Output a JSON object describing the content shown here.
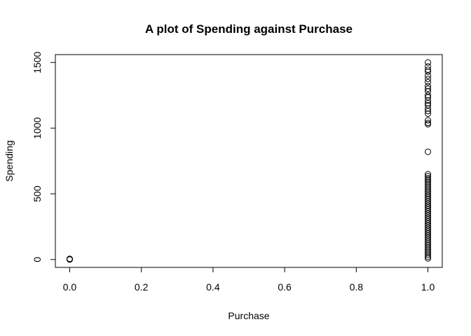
{
  "chart_data": {
    "type": "scatter",
    "title": "A plot of Spending against Purchase",
    "xlabel": "Purchase",
    "ylabel": "Spending",
    "xlim": [
      -0.04,
      1.04
    ],
    "ylim": [
      -60,
      1560
    ],
    "x_ticks": [
      0,
      0.2,
      0.4,
      0.6,
      0.8,
      1
    ],
    "x_tick_labels": [
      "0.0",
      "0.2",
      "0.4",
      "0.6",
      "0.8",
      "1.0"
    ],
    "y_ticks": [
      0,
      500,
      1000,
      1500
    ],
    "y_tick_labels": [
      "0",
      "500",
      "1000",
      "1500"
    ],
    "grid": false,
    "marker": "open-circle",
    "point_color": "#000000",
    "points": [
      {
        "x": 0,
        "y": 0
      },
      {
        "x": 0,
        "y": 2
      },
      {
        "x": 0,
        "y": 5
      },
      {
        "x": 0,
        "y": 1
      },
      {
        "x": 0,
        "y": 3
      },
      {
        "x": 1,
        "y": 1500
      },
      {
        "x": 1,
        "y": 1470
      },
      {
        "x": 1,
        "y": 1445
      },
      {
        "x": 1,
        "y": 1430
      },
      {
        "x": 1,
        "y": 1400
      },
      {
        "x": 1,
        "y": 1375
      },
      {
        "x": 1,
        "y": 1350
      },
      {
        "x": 1,
        "y": 1320
      },
      {
        "x": 1,
        "y": 1300
      },
      {
        "x": 1,
        "y": 1280
      },
      {
        "x": 1,
        "y": 1250
      },
      {
        "x": 1,
        "y": 1235
      },
      {
        "x": 1,
        "y": 1210
      },
      {
        "x": 1,
        "y": 1190
      },
      {
        "x": 1,
        "y": 1175
      },
      {
        "x": 1,
        "y": 1150
      },
      {
        "x": 1,
        "y": 1130
      },
      {
        "x": 1,
        "y": 1110
      },
      {
        "x": 1,
        "y": 1060
      },
      {
        "x": 1,
        "y": 1040
      },
      {
        "x": 1,
        "y": 1030
      },
      {
        "x": 1,
        "y": 820
      },
      {
        "x": 1,
        "y": 650
      },
      {
        "x": 1,
        "y": 635
      },
      {
        "x": 1,
        "y": 620
      },
      {
        "x": 1,
        "y": 605
      },
      {
        "x": 1,
        "y": 590
      },
      {
        "x": 1,
        "y": 575
      },
      {
        "x": 1,
        "y": 560
      },
      {
        "x": 1,
        "y": 545
      },
      {
        "x": 1,
        "y": 530
      },
      {
        "x": 1,
        "y": 515
      },
      {
        "x": 1,
        "y": 500
      },
      {
        "x": 1,
        "y": 485
      },
      {
        "x": 1,
        "y": 470
      },
      {
        "x": 1,
        "y": 455
      },
      {
        "x": 1,
        "y": 440
      },
      {
        "x": 1,
        "y": 425
      },
      {
        "x": 1,
        "y": 410
      },
      {
        "x": 1,
        "y": 395
      },
      {
        "x": 1,
        "y": 380
      },
      {
        "x": 1,
        "y": 365
      },
      {
        "x": 1,
        "y": 350
      },
      {
        "x": 1,
        "y": 335
      },
      {
        "x": 1,
        "y": 320
      },
      {
        "x": 1,
        "y": 305
      },
      {
        "x": 1,
        "y": 290
      },
      {
        "x": 1,
        "y": 275
      },
      {
        "x": 1,
        "y": 260
      },
      {
        "x": 1,
        "y": 245
      },
      {
        "x": 1,
        "y": 230
      },
      {
        "x": 1,
        "y": 215
      },
      {
        "x": 1,
        "y": 200
      },
      {
        "x": 1,
        "y": 185
      },
      {
        "x": 1,
        "y": 170
      },
      {
        "x": 1,
        "y": 155
      },
      {
        "x": 1,
        "y": 140
      },
      {
        "x": 1,
        "y": 125
      },
      {
        "x": 1,
        "y": 110
      },
      {
        "x": 1,
        "y": 95
      },
      {
        "x": 1,
        "y": 80
      },
      {
        "x": 1,
        "y": 65
      },
      {
        "x": 1,
        "y": 50
      },
      {
        "x": 1,
        "y": 35
      },
      {
        "x": 1,
        "y": 20
      },
      {
        "x": 1,
        "y": 8
      }
    ]
  }
}
